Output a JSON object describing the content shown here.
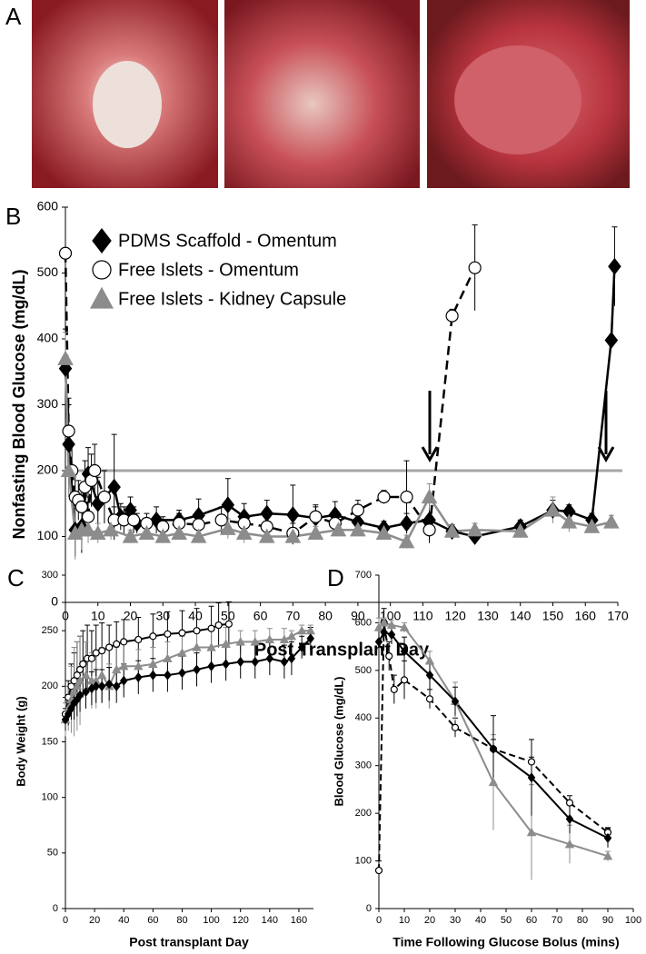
{
  "photo_panel": {
    "panel_label": "A"
  },
  "chart_data": [
    {
      "type": "line",
      "panel_label": "B",
      "x_label": "Post Transplant Day",
      "y_label": "Nonfasting Blood Glucose (mg/dL)",
      "xlim": [
        0,
        170
      ],
      "xticks": [
        0,
        10,
        20,
        30,
        40,
        50,
        60,
        70,
        80,
        90,
        100,
        110,
        120,
        130,
        140,
        150,
        160,
        170
      ],
      "ylim": [
        0,
        600
      ],
      "yticks": [
        0,
        100,
        200,
        300,
        400,
        500,
        600
      ],
      "reference_line": 200,
      "legend": "upper left",
      "series": [
        {
          "name": "PDMS Scaffold - Omentum",
          "color": "#000000",
          "marker": "diamond",
          "dashed": false,
          "x": [
            0,
            1,
            3,
            5,
            7,
            10,
            15,
            17,
            20,
            22,
            28,
            35,
            41,
            50,
            55,
            62,
            70,
            77,
            83,
            90,
            98,
            105,
            112,
            119,
            126,
            140,
            150,
            155,
            162,
            168,
            169
          ],
          "values": [
            355,
            240,
            110,
            115,
            195,
            150,
            175,
            130,
            140,
            120,
            125,
            125,
            132,
            148,
            130,
            135,
            133,
            128,
            133,
            122,
            113,
            120,
            125,
            108,
            100,
            115,
            140,
            138,
            125,
            398,
            510
          ],
          "errors": [
            60,
            60,
            40,
            40,
            40,
            40,
            80,
            20,
            20,
            15,
            20,
            15,
            25,
            40,
            20,
            20,
            45,
            20,
            20,
            15,
            10,
            15,
            30,
            10,
            10,
            10,
            15,
            10,
            10,
            0,
            60
          ]
        },
        {
          "name": "Free Islets - Omentum",
          "color": "#ffffff",
          "marker": "circle",
          "dashed": true,
          "x": [
            0,
            1,
            2,
            3,
            4,
            5,
            6,
            7,
            8,
            9,
            12,
            15,
            18,
            21,
            25,
            30,
            35,
            41,
            48,
            55,
            62,
            70,
            77,
            83,
            90,
            98,
            105,
            112,
            119,
            126
          ],
          "values": [
            530,
            260,
            200,
            160,
            155,
            145,
            175,
            130,
            185,
            200,
            160,
            125,
            125,
            125,
            120,
            115,
            120,
            118,
            125,
            120,
            115,
            105,
            130,
            120,
            140,
            160,
            160,
            110,
            435,
            508
          ],
          "errors": [
            70,
            50,
            40,
            40,
            30,
            30,
            40,
            30,
            40,
            40,
            40,
            20,
            20,
            20,
            15,
            15,
            15,
            15,
            20,
            15,
            15,
            15,
            15,
            15,
            15,
            10,
            55,
            20,
            10,
            65
          ]
        },
        {
          "name": "Free Islets - Kidney Capsule",
          "color": "#8c8c8c",
          "marker": "triangle",
          "dashed": false,
          "x": [
            0,
            1,
            3,
            5,
            7,
            10,
            14,
            20,
            25,
            30,
            35,
            41,
            50,
            55,
            62,
            70,
            77,
            84,
            90,
            98,
            105,
            112,
            119,
            126,
            140,
            150,
            155,
            162,
            168
          ],
          "values": [
            370,
            200,
            105,
            110,
            110,
            105,
            110,
            100,
            105,
            100,
            105,
            100,
            112,
            105,
            100,
            100,
            105,
            110,
            110,
            105,
            92,
            160,
            108,
            110,
            108,
            140,
            122,
            115,
            122
          ],
          "errors": [
            40,
            40,
            40,
            30,
            20,
            15,
            15,
            10,
            10,
            10,
            10,
            10,
            15,
            15,
            10,
            10,
            10,
            10,
            10,
            10,
            10,
            20,
            10,
            10,
            10,
            20,
            15,
            10,
            10
          ]
        }
      ]
    },
    {
      "type": "line",
      "panel_label": "C",
      "x_label": "Post transplant Day",
      "y_label": "Body Weight (g)",
      "xlim": [
        0,
        170
      ],
      "xticks": [
        0,
        20,
        40,
        60,
        80,
        100,
        120,
        140,
        160
      ],
      "ylim": [
        0,
        300
      ],
      "yticks": [
        0,
        50,
        100,
        150,
        200,
        250,
        300
      ],
      "series": [
        {
          "color": "#ffffff",
          "marker": "circle",
          "dashed": false,
          "x": [
            0,
            2,
            4,
            6,
            8,
            10,
            12,
            15,
            18,
            21,
            25,
            30,
            35,
            40,
            50,
            60,
            70,
            80,
            90,
            100,
            105,
            112
          ],
          "values": [
            175,
            190,
            200,
            205,
            210,
            215,
            220,
            225,
            225,
            230,
            232,
            235,
            238,
            240,
            242,
            245,
            247,
            248,
            250,
            252,
            255,
            256
          ],
          "errors": [
            15,
            15,
            20,
            25,
            30,
            30,
            30,
            30,
            25,
            25,
            25,
            20,
            20,
            20,
            20,
            20,
            20,
            20,
            20,
            20,
            20,
            20
          ]
        },
        {
          "color": "#8c8c8c",
          "marker": "triangle",
          "dashed": false,
          "x": [
            0,
            2,
            4,
            6,
            8,
            10,
            14,
            18,
            21,
            25,
            30,
            35,
            40,
            50,
            60,
            70,
            80,
            90,
            100,
            110,
            120,
            130,
            140,
            150,
            155,
            162,
            168
          ],
          "values": [
            170,
            180,
            188,
            195,
            200,
            205,
            210,
            205,
            205,
            210,
            200,
            215,
            218,
            218,
            220,
            225,
            230,
            235,
            235,
            238,
            240,
            240,
            242,
            242,
            245,
            250,
            250
          ],
          "errors": [
            15,
            20,
            30,
            40,
            40,
            40,
            30,
            25,
            25,
            25,
            20,
            20,
            20,
            15,
            15,
            15,
            15,
            15,
            15,
            15,
            10,
            10,
            10,
            10,
            5,
            5,
            5
          ]
        },
        {
          "color": "#000000",
          "marker": "diamond",
          "dashed": false,
          "x": [
            0,
            2,
            4,
            6,
            8,
            10,
            14,
            18,
            21,
            25,
            30,
            35,
            40,
            50,
            60,
            70,
            80,
            90,
            100,
            110,
            120,
            130,
            140,
            150,
            155,
            162,
            168
          ],
          "values": [
            170,
            175,
            180,
            185,
            188,
            192,
            195,
            198,
            200,
            200,
            202,
            200,
            205,
            208,
            210,
            210,
            212,
            215,
            218,
            220,
            222,
            222,
            225,
            222,
            225,
            235,
            243
          ],
          "errors": [
            10,
            10,
            10,
            15,
            15,
            15,
            15,
            15,
            15,
            15,
            15,
            15,
            15,
            15,
            15,
            15,
            15,
            15,
            15,
            15,
            15,
            15,
            15,
            15,
            15,
            10,
            10
          ]
        }
      ]
    },
    {
      "type": "line",
      "panel_label": "D",
      "x_label": "Time Following Glucose Bolus (mins)",
      "y_label": "Blood Glucose (mg/dL)",
      "xlim": [
        0,
        100
      ],
      "xticks": [
        0,
        10,
        20,
        30,
        40,
        50,
        60,
        70,
        80,
        90,
        100
      ],
      "ylim": [
        0,
        700
      ],
      "yticks": [
        0,
        100,
        200,
        300,
        400,
        500,
        600,
        700
      ],
      "series": [
        {
          "color": "#ffffff",
          "marker": "circle",
          "dashed": true,
          "x": [
            0,
            2,
            4,
            6,
            10,
            20,
            30,
            45,
            60,
            75,
            90
          ],
          "values": [
            80,
            600,
            530,
            460,
            480,
            440,
            380,
            335,
            308,
            222,
            160
          ],
          "errors": [
            20,
            30,
            30,
            30,
            40,
            20,
            20,
            20,
            10,
            15,
            10
          ]
        },
        {
          "color": "#8c8c8c",
          "marker": "triangle",
          "dashed": false,
          "x": [
            0,
            2,
            5,
            10,
            20,
            30,
            45,
            60,
            75,
            90
          ],
          "values": [
            590,
            600,
            595,
            590,
            520,
            435,
            265,
            160,
            135,
            110
          ],
          "errors": [
            20,
            10,
            10,
            10,
            20,
            40,
            100,
            100,
            40,
            10
          ]
        },
        {
          "color": "#000000",
          "marker": "diamond",
          "dashed": false,
          "x": [
            0,
            2,
            5,
            10,
            20,
            30,
            45,
            60,
            75,
            90
          ],
          "values": [
            560,
            580,
            575,
            540,
            490,
            435,
            335,
            275,
            188,
            148
          ],
          "errors": [
            30,
            20,
            20,
            30,
            30,
            30,
            70,
            80,
            30,
            20
          ]
        }
      ]
    }
  ]
}
